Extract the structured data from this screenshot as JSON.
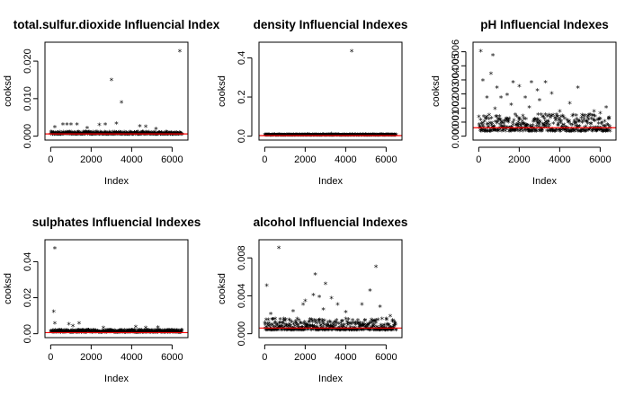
{
  "chart_data": [
    {
      "type": "scatter",
      "title": "total.sulfur.dioxide Influencial Index",
      "xlabel": "Index",
      "ylabel": "cooksd",
      "xlim": [
        0,
        6500
      ],
      "xticks": [
        0,
        2000,
        4000,
        6000
      ],
      "ylim": [
        0,
        0.024
      ],
      "yticks": [
        "0.000",
        "0.010",
        "0.020"
      ],
      "ytick_values": [
        0,
        0.01,
        0.02
      ],
      "cutoff": 0.0006,
      "cutoff_color": "#ff0000",
      "base_level": 0.0003,
      "base_spread": 0.0007,
      "outliers": [
        {
          "x": 6380,
          "y": 0.0224
        },
        {
          "x": 3000,
          "y": 0.0148
        },
        {
          "x": 3500,
          "y": 0.0088
        },
        {
          "x": 3250,
          "y": 0.0032
        },
        {
          "x": 600,
          "y": 0.003
        },
        {
          "x": 800,
          "y": 0.003
        },
        {
          "x": 1000,
          "y": 0.003
        },
        {
          "x": 1300,
          "y": 0.0029
        },
        {
          "x": 2400,
          "y": 0.0028
        },
        {
          "x": 2700,
          "y": 0.0029
        },
        {
          "x": 4400,
          "y": 0.0025
        },
        {
          "x": 4700,
          "y": 0.0024
        },
        {
          "x": 200,
          "y": 0.0022
        },
        {
          "x": 1800,
          "y": 0.002
        },
        {
          "x": 5200,
          "y": 0.0018
        }
      ]
    },
    {
      "type": "scatter",
      "title": "density Influencial Indexes",
      "xlabel": "Index",
      "ylabel": "cooksd",
      "xlim": [
        0,
        6500
      ],
      "xticks": [
        0,
        2000,
        4000,
        6000
      ],
      "ylim": [
        0,
        0.46
      ],
      "yticks": [
        "0.0",
        "0.2",
        "0.4"
      ],
      "ytick_values": [
        0,
        0.2,
        0.4
      ],
      "cutoff": 0.003,
      "cutoff_color": "#ff0000",
      "base_level": 0.001,
      "base_spread": 0.004,
      "outliers": [
        {
          "x": 4300,
          "y": 0.43
        },
        {
          "x": 3300,
          "y": 0.008
        },
        {
          "x": 5000,
          "y": 0.007
        },
        {
          "x": 2100,
          "y": 0.006
        }
      ]
    },
    {
      "type": "scatter",
      "title": "pH Influencial Indexes",
      "xlabel": "Index",
      "ylabel": "cooksd",
      "xlim": [
        0,
        6500
      ],
      "xticks": [
        0,
        2000,
        4000,
        6000
      ],
      "ylim": [
        0,
        0.0064
      ],
      "yticks": [
        "0.000",
        "0.001",
        "0.002",
        "0.003",
        "0.004",
        "0.005",
        "0.006"
      ],
      "ytick_values": [
        0,
        0.001,
        0.002,
        0.003,
        0.004,
        0.005,
        0.006
      ],
      "cutoff": 0.0006,
      "cutoff_color": "#ff0000",
      "base_level": 0.0003,
      "base_spread": 0.0012,
      "outliers": [
        {
          "x": 100,
          "y": 0.006
        },
        {
          "x": 700,
          "y": 0.0057
        },
        {
          "x": 600,
          "y": 0.0044
        },
        {
          "x": 200,
          "y": 0.0039
        },
        {
          "x": 900,
          "y": 0.0034
        },
        {
          "x": 1700,
          "y": 0.0038
        },
        {
          "x": 2600,
          "y": 0.0038
        },
        {
          "x": 3300,
          "y": 0.0038
        },
        {
          "x": 2000,
          "y": 0.0035
        },
        {
          "x": 2900,
          "y": 0.0032
        },
        {
          "x": 4900,
          "y": 0.0034
        },
        {
          "x": 3600,
          "y": 0.003
        },
        {
          "x": 1400,
          "y": 0.0029
        },
        {
          "x": 400,
          "y": 0.0027
        },
        {
          "x": 1100,
          "y": 0.0027
        },
        {
          "x": 2300,
          "y": 0.0027
        },
        {
          "x": 3000,
          "y": 0.0025
        },
        {
          "x": 4500,
          "y": 0.0023
        },
        {
          "x": 6300,
          "y": 0.002
        },
        {
          "x": 5700,
          "y": 0.0017
        },
        {
          "x": 6000,
          "y": 0.0016
        },
        {
          "x": 4000,
          "y": 0.0017
        },
        {
          "x": 1600,
          "y": 0.0022
        },
        {
          "x": 2500,
          "y": 0.002
        },
        {
          "x": 800,
          "y": 0.0019
        }
      ]
    },
    {
      "type": "scatter",
      "title": "sulphates Influencial Indexes",
      "xlabel": "Index",
      "ylabel": "cooksd",
      "xlim": [
        0,
        6500
      ],
      "xticks": [
        0,
        2000,
        4000,
        6000
      ],
      "ylim": [
        0,
        0.05
      ],
      "yticks": [
        "0.00",
        "0.02",
        "0.04"
      ],
      "ytick_values": [
        0,
        0.02,
        0.04
      ],
      "cutoff": 0.0006,
      "cutoff_color": "#ff0000",
      "base_level": 0.0004,
      "base_spread": 0.0014,
      "outliers": [
        {
          "x": 200,
          "y": 0.047
        },
        {
          "x": 150,
          "y": 0.012
        },
        {
          "x": 200,
          "y": 0.0055
        },
        {
          "x": 900,
          "y": 0.005
        },
        {
          "x": 1400,
          "y": 0.0055
        },
        {
          "x": 1100,
          "y": 0.004
        },
        {
          "x": 2600,
          "y": 0.003
        },
        {
          "x": 4200,
          "y": 0.0035
        },
        {
          "x": 4700,
          "y": 0.003
        },
        {
          "x": 5300,
          "y": 0.0032
        }
      ]
    },
    {
      "type": "scatter",
      "title": "alcohol Influencial Indexes",
      "xlabel": "Index",
      "ylabel": "cooksd",
      "xlim": [
        0,
        6500
      ],
      "xticks": [
        0,
        2000,
        4000,
        6000
      ],
      "ylim": [
        0,
        0.0095
      ],
      "yticks": [
        "0.000",
        "0.004",
        "0.008"
      ],
      "ytick_values": [
        0,
        0.004,
        0.008
      ],
      "cutoff": 0.0006,
      "cutoff_color": "#ff0000",
      "base_level": 0.0003,
      "base_spread": 0.0012,
      "outliers": [
        {
          "x": 700,
          "y": 0.009
        },
        {
          "x": 5500,
          "y": 0.007
        },
        {
          "x": 2500,
          "y": 0.0062
        },
        {
          "x": 3000,
          "y": 0.0052
        },
        {
          "x": 100,
          "y": 0.005
        },
        {
          "x": 5200,
          "y": 0.0045
        },
        {
          "x": 2700,
          "y": 0.0038
        },
        {
          "x": 2400,
          "y": 0.004
        },
        {
          "x": 3300,
          "y": 0.0037
        },
        {
          "x": 2000,
          "y": 0.0034
        },
        {
          "x": 1900,
          "y": 0.003
        },
        {
          "x": 3600,
          "y": 0.003
        },
        {
          "x": 4800,
          "y": 0.003
        },
        {
          "x": 5700,
          "y": 0.0028
        },
        {
          "x": 2900,
          "y": 0.0025
        },
        {
          "x": 1400,
          "y": 0.0023
        },
        {
          "x": 300,
          "y": 0.002
        },
        {
          "x": 4000,
          "y": 0.0022
        },
        {
          "x": 6200,
          "y": 0.0018
        }
      ]
    }
  ]
}
